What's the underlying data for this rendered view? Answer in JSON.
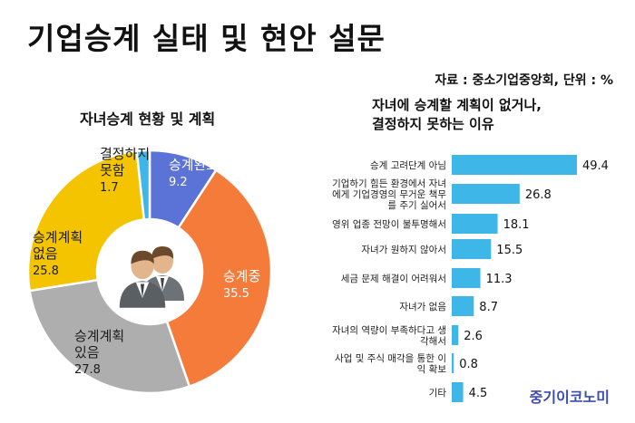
{
  "header": {
    "title": "기업승계 실태 및 현안 설문",
    "source": "자료 : 중소기업중앙회, 단위 : %"
  },
  "brand": "중기이코노미",
  "chart_data": [
    {
      "type": "pie",
      "title": "자녀승계 현황 및 계획",
      "hole": true,
      "slices": [
        {
          "label": "승계완료",
          "value": 9.2,
          "color": "#5b72d6"
        },
        {
          "label": "승계중",
          "value": 35.5,
          "color": "#f57b3a"
        },
        {
          "label": "승계계획 있음",
          "value": 27.8,
          "color": "#aeaeae"
        },
        {
          "label": "승계계획 없음",
          "value": 25.8,
          "color": "#f5c400"
        },
        {
          "label": "결정하지 못함",
          "value": 1.7,
          "color": "#3fb6e8"
        }
      ],
      "center_icon": "businessmen-icon"
    },
    {
      "type": "bar",
      "orientation": "horizontal",
      "title": "자녀에 승계할 계획이 없거나, 결정하지 못하는 이유",
      "bar_color": "#3fb6e8",
      "categories": [
        "승계 고려단계 아님",
        "기업하기 힘든 환경에서 자녀에게 기업경영의 무거운 책무를 주기 싫어서",
        "영위 업종 전망이 불투명해서",
        "자녀가 원하지 않아서",
        "세금 문제 해결이 어려워서",
        "자녀가 없음",
        "자녀의 역량이 부족하다고 생각해서",
        "사업 및 주식 매각을 통한 이익 확보",
        "기타"
      ],
      "values": [
        49.4,
        26.8,
        18.1,
        15.5,
        11.3,
        8.7,
        2.6,
        0.8,
        4.5
      ]
    }
  ]
}
